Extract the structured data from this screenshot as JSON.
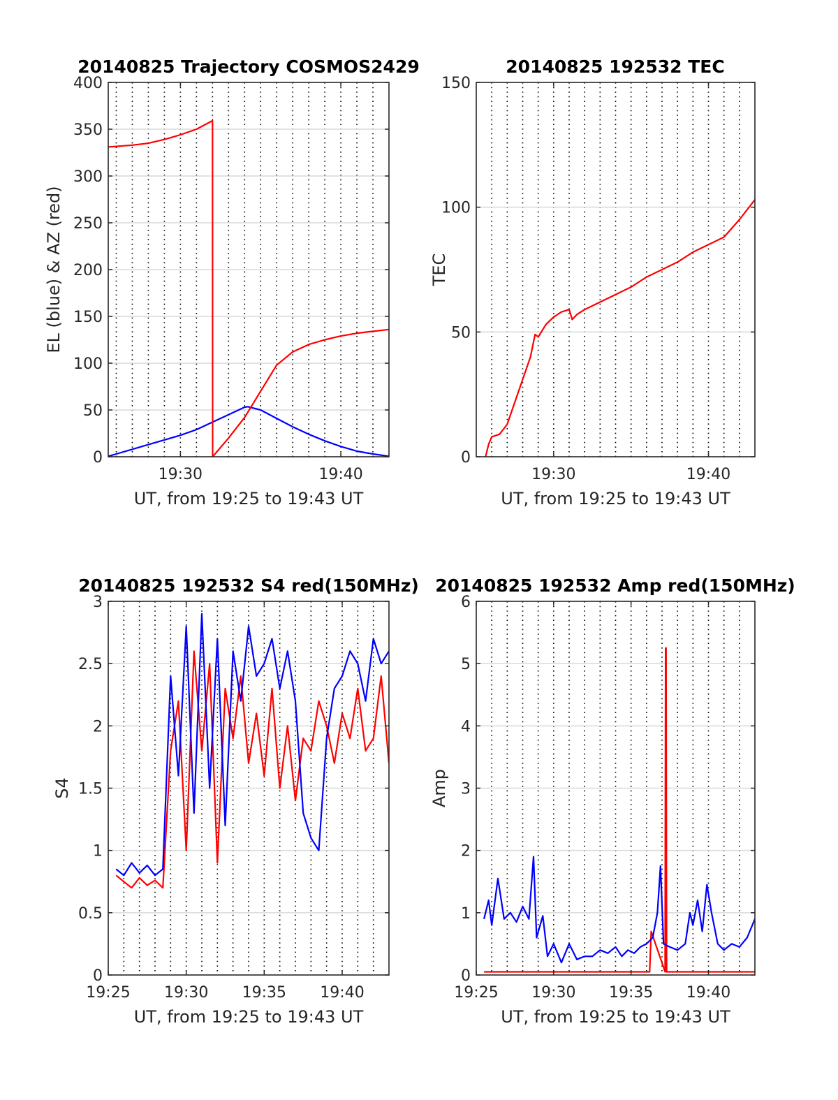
{
  "colors": {
    "el": "#0000ff",
    "az": "#ff0000",
    "tec": "#ff0000",
    "red": "#ff0000",
    "blue": "#0000ff",
    "grid": "#d9d9d9",
    "axis": "#262626"
  },
  "chart_data": [
    {
      "id": "trajectory",
      "type": "line",
      "title": "20140825 Trajectory COSMOS2429",
      "xlabel": "UT, from 19:25 to 19:43 UT",
      "ylabel": "EL (blue) & AZ (red)",
      "xlim_min": [
        25.5,
        43
      ],
      "ylim": [
        0,
        400
      ],
      "yticks": [
        0,
        50,
        100,
        150,
        200,
        250,
        300,
        350,
        400
      ],
      "ytick_labels": [
        "0",
        "50",
        "100",
        "150",
        "200",
        "250",
        "300",
        "350",
        "400"
      ],
      "xticks_min": [
        30,
        40
      ],
      "xtick_labels": [
        "19:30",
        "19:40"
      ],
      "grid": "x dotted every minute, y solid",
      "series": [
        {
          "name": "EL (blue)",
          "color": "#0000ff",
          "x_min": [
            25.5,
            26,
            27,
            28,
            29,
            30,
            31,
            32,
            33,
            34,
            34.2,
            35,
            36,
            37,
            38,
            39,
            40,
            41,
            42,
            43
          ],
          "y": [
            0.5,
            3,
            8,
            13,
            18,
            23,
            29,
            37,
            45,
            53,
            53.5,
            50,
            41,
            32,
            24,
            17,
            11,
            6,
            3,
            0.5
          ]
        },
        {
          "name": "AZ (red)",
          "color": "#ff0000",
          "x_min": [
            25.5,
            27,
            28,
            29,
            30,
            31,
            32,
            32.01,
            33,
            34,
            35,
            36,
            37,
            38,
            39,
            40,
            41,
            42,
            43
          ],
          "y": [
            331,
            333,
            335,
            339,
            344,
            350,
            359,
            0,
            20,
            42,
            70,
            98,
            112,
            120,
            125,
            129,
            132,
            134,
            136
          ]
        }
      ]
    },
    {
      "id": "tec",
      "type": "line",
      "title": "20140825 192532 TEC",
      "xlabel": "UT, from 19:25 to 19:43 UT",
      "ylabel": "TEC",
      "xlim_min": [
        25,
        43
      ],
      "ylim": [
        0,
        150
      ],
      "yticks": [
        0,
        50,
        100,
        150
      ],
      "ytick_labels": [
        "0",
        "50",
        "100",
        "150"
      ],
      "xticks_min": [
        30,
        40
      ],
      "xtick_labels": [
        "19:30",
        "19:40"
      ],
      "grid": "x dotted every minute, y solid",
      "series": [
        {
          "name": "TEC",
          "color": "#ff0000",
          "x_min": [
            25.6,
            25.8,
            26,
            26.5,
            27,
            27.5,
            28,
            28.5,
            28.8,
            29,
            29.5,
            30,
            30.5,
            31,
            31.2,
            31.5,
            32,
            33,
            34,
            35,
            36,
            37,
            38,
            39,
            40,
            41,
            42,
            43
          ],
          "y": [
            0,
            5,
            8,
            9,
            13,
            22,
            31,
            40,
            49,
            48,
            53,
            56,
            58,
            59,
            55,
            57,
            59,
            62,
            65,
            68,
            72,
            75,
            78,
            82,
            85,
            88,
            95,
            103
          ]
        }
      ]
    },
    {
      "id": "s4",
      "type": "line",
      "title": "20140825 192532 S4 red(150MHz)",
      "xlabel": "UT, from 19:25 to 19:43 UT",
      "ylabel": "S4",
      "xlim_min": [
        25,
        43
      ],
      "ylim": [
        0,
        3
      ],
      "yticks": [
        0,
        0.5,
        1,
        1.5,
        2,
        2.5,
        3
      ],
      "ytick_labels": [
        "0",
        "0.5",
        "1",
        "1.5",
        "2",
        "2.5",
        "3"
      ],
      "xticks_min": [
        25,
        30,
        35,
        40
      ],
      "xtick_labels": [
        "19:25",
        "19:30",
        "19:35",
        "19:40"
      ],
      "grid": "x dotted every minute, y solid",
      "series": [
        {
          "name": "red",
          "color": "#ff0000",
          "x_min": [
            25.5,
            26,
            26.5,
            27,
            27.5,
            28,
            28.5,
            29,
            29.5,
            30,
            30.5,
            31,
            31.5,
            32,
            32.5,
            33,
            33.5,
            34,
            34.5,
            35,
            35.5,
            36,
            36.5,
            37,
            37.5,
            38,
            38.5,
            39,
            39.5,
            40,
            40.5,
            41,
            41.5,
            42,
            42.5,
            43
          ],
          "y": [
            0.8,
            0.75,
            0.7,
            0.78,
            0.72,
            0.76,
            0.7,
            1.8,
            2.2,
            1.0,
            2.6,
            1.8,
            2.5,
            0.9,
            2.3,
            1.9,
            2.4,
            1.7,
            2.1,
            1.6,
            2.3,
            1.5,
            2.0,
            1.4,
            1.9,
            1.8,
            2.2,
            2.0,
            1.7,
            2.1,
            1.9,
            2.3,
            1.8,
            1.9,
            2.4,
            1.7
          ]
        },
        {
          "name": "blue",
          "color": "#0000ff",
          "x_min": [
            25.5,
            26,
            26.5,
            27,
            27.5,
            28,
            28.5,
            29,
            29.5,
            30,
            30.5,
            31,
            31.5,
            32,
            32.5,
            33,
            33.5,
            34,
            34.5,
            35,
            35.5,
            36,
            36.5,
            37,
            37.5,
            38,
            38.5,
            39,
            39.5,
            40,
            40.5,
            41,
            41.5,
            42,
            42.5,
            43
          ],
          "y": [
            0.85,
            0.8,
            0.9,
            0.82,
            0.88,
            0.8,
            0.85,
            2.4,
            1.6,
            2.8,
            1.3,
            2.9,
            1.5,
            2.7,
            1.2,
            2.6,
            2.2,
            2.8,
            2.4,
            2.5,
            2.7,
            2.3,
            2.6,
            2.2,
            1.3,
            1.1,
            1.0,
            1.9,
            2.3,
            2.4,
            2.6,
            2.5,
            2.2,
            2.7,
            2.5,
            2.6
          ]
        }
      ]
    },
    {
      "id": "amp",
      "type": "line",
      "title": "20140825 192532 Amp red(150MHz)",
      "xlabel": "UT, from 19:25 to 19:43 UT",
      "ylabel": "Amp",
      "xlim_min": [
        25,
        43
      ],
      "ylim": [
        0,
        6
      ],
      "yticks": [
        0,
        1,
        2,
        3,
        4,
        5,
        6
      ],
      "ytick_labels": [
        "0",
        "1",
        "2",
        "3",
        "4",
        "5",
        "6"
      ],
      "xticks_min": [
        25,
        30,
        35,
        40
      ],
      "xtick_labels": [
        "19:25",
        "19:30",
        "19:35",
        "19:40"
      ],
      "grid": "x dotted every minute, y solid",
      "series": [
        {
          "name": "red",
          "color": "#ff0000",
          "x_min": [
            25.5,
            30,
            35,
            36.2,
            36.3,
            37.2,
            37.23,
            37.26,
            37.3,
            40,
            43
          ],
          "y": [
            0.05,
            0.05,
            0.05,
            0.05,
            0.7,
            0.05,
            5.25,
            5.25,
            0.05,
            0.05,
            0.05
          ]
        },
        {
          "name": "blue",
          "color": "#0000ff",
          "x_min": [
            25.5,
            25.8,
            26,
            26.4,
            26.8,
            27.2,
            27.6,
            28,
            28.4,
            28.7,
            28.9,
            29.3,
            29.6,
            30,
            30.5,
            31,
            31.5,
            32,
            32.5,
            33,
            33.5,
            34,
            34.4,
            34.8,
            35.2,
            35.6,
            36,
            36.4,
            36.7,
            36.9,
            37.1,
            37.5,
            38,
            38.5,
            38.8,
            39,
            39.3,
            39.6,
            39.9,
            40.2,
            40.6,
            41,
            41.5,
            42,
            42.5,
            43
          ],
          "y": [
            0.9,
            1.2,
            0.8,
            1.55,
            0.9,
            1.0,
            0.85,
            1.1,
            0.9,
            1.9,
            0.6,
            0.95,
            0.3,
            0.5,
            0.2,
            0.5,
            0.25,
            0.3,
            0.3,
            0.4,
            0.35,
            0.45,
            0.3,
            0.4,
            0.35,
            0.45,
            0.5,
            0.6,
            1.0,
            1.75,
            0.5,
            0.45,
            0.4,
            0.5,
            1.0,
            0.8,
            1.2,
            0.7,
            1.45,
            1.0,
            0.5,
            0.4,
            0.5,
            0.45,
            0.6,
            0.9
          ]
        }
      ]
    }
  ]
}
